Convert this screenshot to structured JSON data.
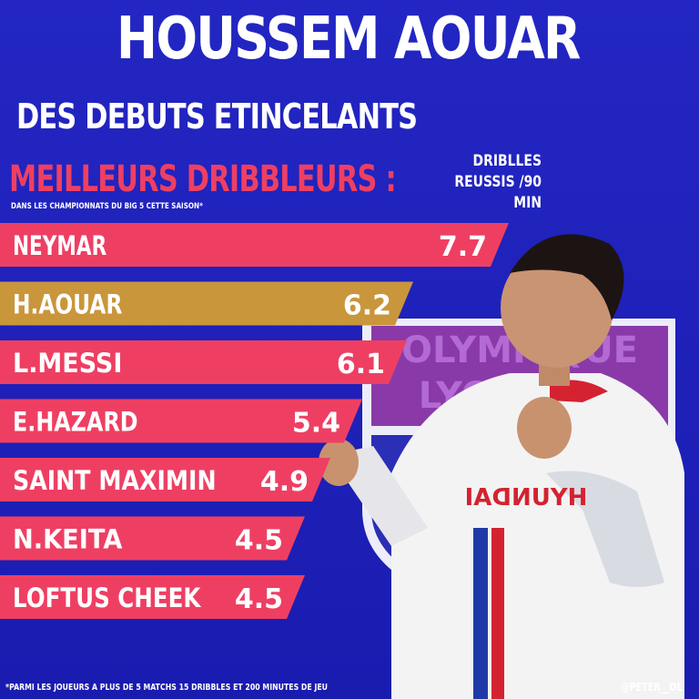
{
  "title": "HOUSSEM AOUAR",
  "subtitle": "DES DEBUTS ETINCELANTS",
  "ranking_title": "MEILLEURS DRIBBLEURS :",
  "ranking_note": "DANS LES CHAMPIONNATS DU BIG 5 CETTE SAISON*",
  "metric_header": "DRIBLLES REUSSIS /90 MIN",
  "footnote": "*PARMI LES JOUEURS A PLUS DE 5 MATCHS 15 DRIBBLES ET 200 MINUTES DE JEU",
  "credit": "@PETER__OL",
  "colors": {
    "background": "#1d1fb3",
    "bar": "#ee3f63",
    "highlight_bar": "#c9963b",
    "title_accent": "#ee3f63"
  },
  "badge_text": [
    "OLYMPIQUE",
    "LYONNAIS"
  ],
  "sponsor_text": "HYUNDAI",
  "chart_data": {
    "type": "bar",
    "orientation": "horizontal",
    "title": "MEILLEURS DRIBBLEURS :",
    "value_label": "DRIBLLES REUSSIS /90 MIN",
    "categories": [
      "NEYMAR",
      "H.AOUAR",
      "L.MESSI",
      "E.HAZARD",
      "SAINT MAXIMIN",
      "N.KEITA",
      "LOFTUS CHEEK"
    ],
    "values": [
      7.7,
      6.2,
      6.1,
      5.4,
      4.9,
      4.5,
      4.5
    ],
    "highlight": "H.AOUAR",
    "legend": "none",
    "grid": false
  }
}
